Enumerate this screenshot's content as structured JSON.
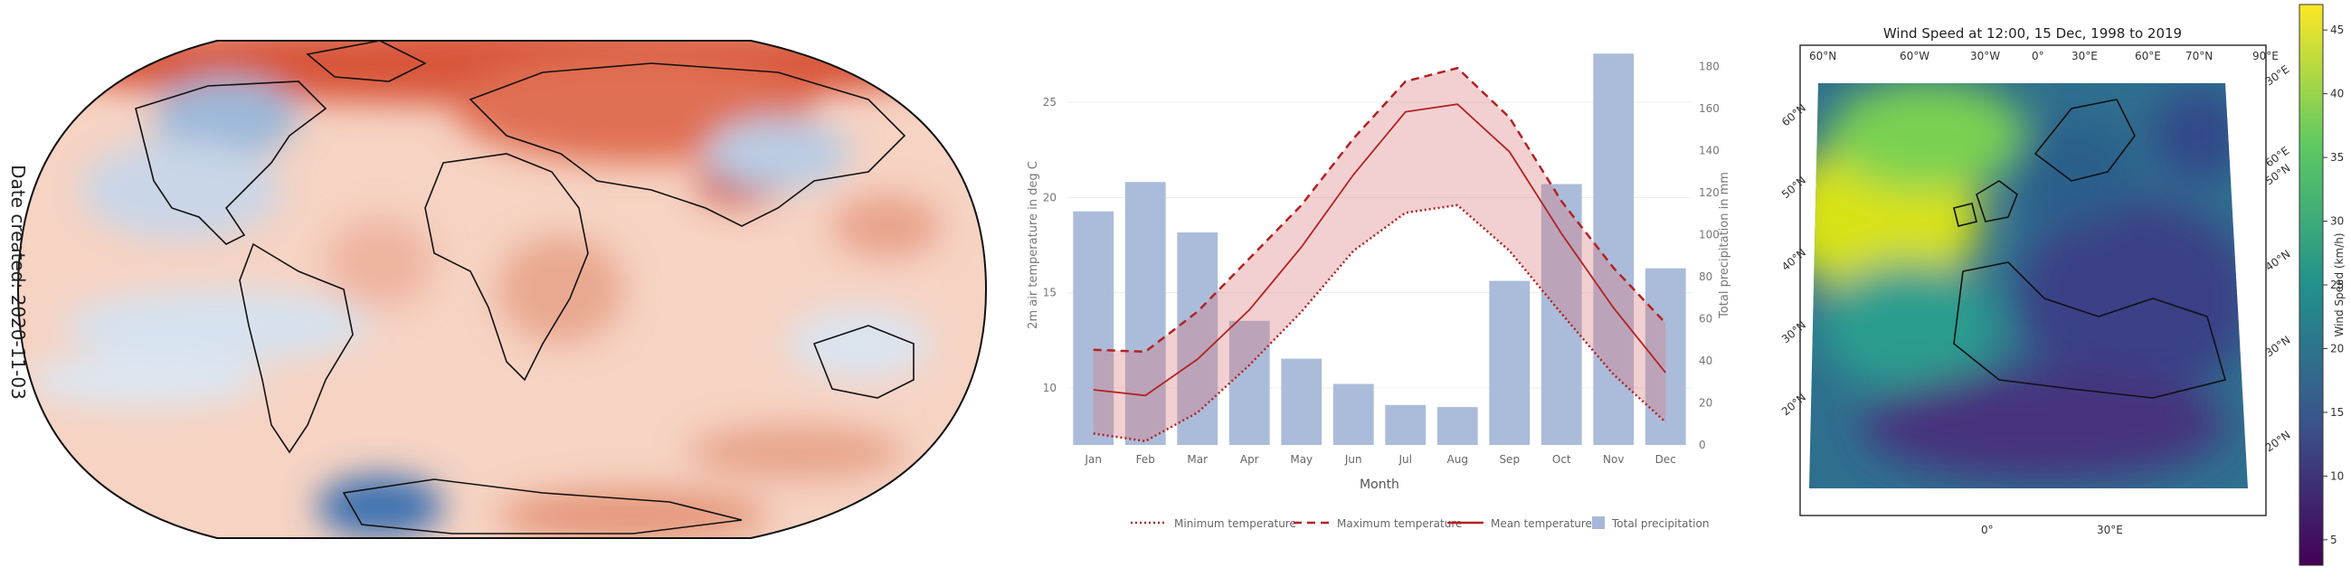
{
  "map_panel": {
    "date_label": "Date created: 2020-11-03"
  },
  "chart_data": [
    {
      "type": "bar+line",
      "xlabel": "Month",
      "ylabel_left": "2m air temperature in deg C",
      "ylabel_right": "Total precipitation in mm",
      "categories": [
        "Jan",
        "Feb",
        "Mar",
        "Apr",
        "May",
        "Jun",
        "Jul",
        "Aug",
        "Sep",
        "Oct",
        "Nov",
        "Dec"
      ],
      "y_left_ticks": [
        10,
        15,
        20,
        25
      ],
      "y_left_range": [
        7.0,
        28.0
      ],
      "y_right_ticks": [
        0,
        20,
        40,
        60,
        80,
        100,
        120,
        140,
        160,
        180
      ],
      "y_right_range": [
        0,
        190
      ],
      "grid": true,
      "legend_placement": "bottom",
      "series": [
        {
          "name": "Minimum temperature",
          "style": "dotted",
          "color": "#b22222",
          "axis": "left",
          "values": [
            7.6,
            7.2,
            8.7,
            11.2,
            14.0,
            17.2,
            19.2,
            19.6,
            17.2,
            13.9,
            10.7,
            8.2
          ]
        },
        {
          "name": "Maximum temperature",
          "style": "dashed",
          "color": "#b22222",
          "axis": "left",
          "values": [
            12.0,
            11.9,
            14.0,
            16.8,
            19.6,
            23.1,
            26.1,
            26.8,
            24.2,
            19.8,
            16.3,
            13.4
          ]
        },
        {
          "name": "Mean temperature",
          "style": "solid",
          "color": "#b22222",
          "axis": "left",
          "values": [
            9.9,
            9.6,
            11.5,
            14.1,
            17.4,
            21.2,
            24.5,
            24.9,
            22.4,
            18.1,
            14.2,
            10.8
          ]
        },
        {
          "name": "Total precipitation",
          "style": "bar",
          "color": "#a6b8d8",
          "axis": "right",
          "values": [
            111,
            125,
            101,
            59,
            41,
            29,
            19,
            18,
            78,
            124,
            186,
            84
          ]
        }
      ]
    },
    {
      "type": "heatmap",
      "title": "Wind Speed at 12:00, 15 Dec, 1998 to 2019",
      "colorbar_label": "Wind Speed (km/h)",
      "colorbar_ticks": [
        5,
        10,
        15,
        20,
        25,
        30,
        35,
        40,
        45
      ],
      "colorbar_range": [
        3,
        47
      ],
      "colormap": "viridis",
      "lat_labels": [
        "60°N",
        "50°N",
        "40°N",
        "30°N",
        "20°N"
      ],
      "lon_labels_top": [
        "60°N",
        "60°W",
        "30°W",
        "0°",
        "30°E",
        "60°E",
        "70°N",
        "90°E"
      ],
      "lon_labels_bottom": [
        "0°",
        "30°E"
      ],
      "lat_labels_right": [
        "30°E",
        "60°E",
        "50°N",
        "40°N",
        "30°N",
        "20°N"
      ]
    }
  ]
}
